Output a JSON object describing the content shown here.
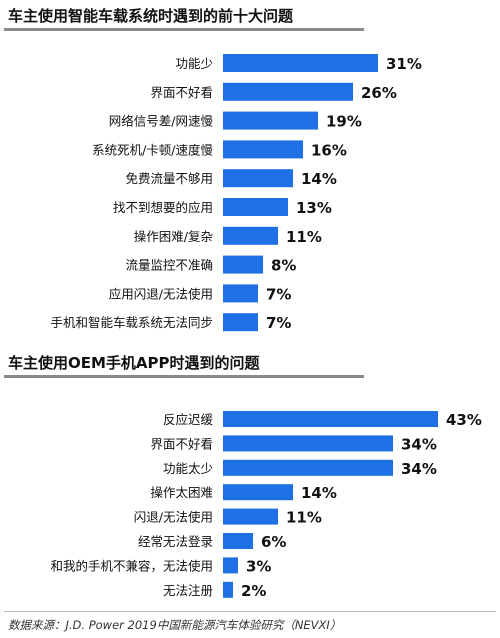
{
  "chart_data": [
    {
      "type": "bar",
      "orientation": "horizontal",
      "title": "车主使用智能车载系统时遇到的前十大问题",
      "categories": [
        "功能少",
        "界面不好看",
        "网络信号差/网速慢",
        "系统死机/卡顿/速度慢",
        "免费流量不够用",
        "找不到想要的应用",
        "操作困难/复杂",
        "流量监控不准确",
        "应用闪退/无法使用",
        "手机和智能车载系统无法同步"
      ],
      "values": [
        31,
        26,
        19,
        16,
        14,
        13,
        11,
        8,
        7,
        7
      ],
      "value_labels": [
        "31%",
        "26%",
        "19%",
        "16%",
        "14%",
        "13%",
        "11%",
        "8%",
        "7%",
        "7%"
      ],
      "xlim": [
        0,
        50
      ],
      "bar_color": "#1f6fe5"
    },
    {
      "type": "bar",
      "orientation": "horizontal",
      "title": "车主使用OEM手机APP时遇到的问题",
      "categories": [
        "反应迟缓",
        "界面不好看",
        "功能太少",
        "操作太困难",
        "闪退/无法使用",
        "经常无法登录",
        "和我的手机不兼容，无法使用",
        "无法注册"
      ],
      "values": [
        43,
        34,
        34,
        14,
        11,
        6,
        3,
        2
      ],
      "value_labels": [
        "43%",
        "34%",
        "34%",
        "14%",
        "11%",
        "6%",
        "3%",
        "2%"
      ],
      "xlim": [
        0,
        50
      ],
      "bar_color": "#1f6fe5"
    }
  ],
  "source": "数据来源：J.D. Power 2019中国新能源汽车体验研究（NEVXI）"
}
